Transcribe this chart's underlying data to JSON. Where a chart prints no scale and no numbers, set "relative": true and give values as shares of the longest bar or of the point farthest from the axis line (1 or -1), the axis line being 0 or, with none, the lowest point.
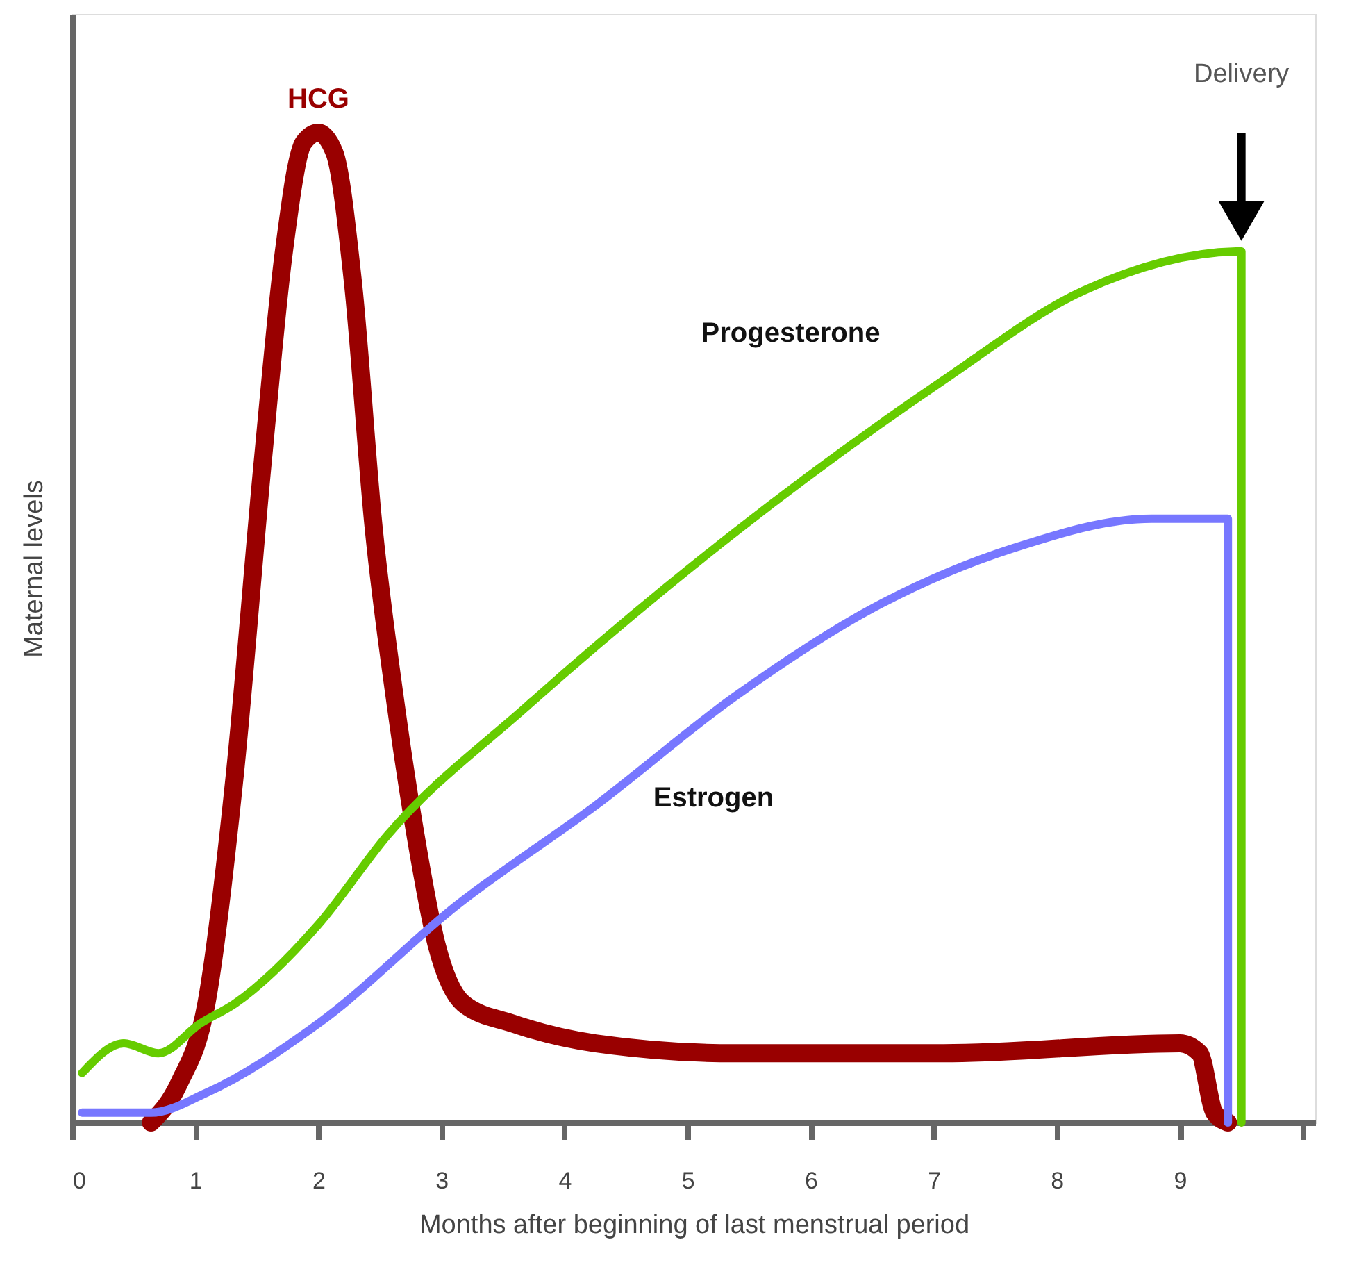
{
  "chart_data": {
    "type": "line",
    "relative": true,
    "xlabel": "Months after beginning of last menstrual period",
    "ylabel": "Maternal levels",
    "xlim": [
      0,
      10.1
    ],
    "xticks": [
      0,
      1,
      2,
      3,
      4,
      5,
      6,
      7,
      8,
      9,
      {
        "value": 10,
        "label": null
      }
    ],
    "grid": false,
    "line_style": "solid",
    "series": [
      {
        "name": "HCG",
        "color": "#990000",
        "x": [
          0.64,
          0.87,
          1.09,
          1.32,
          1.55,
          1.72,
          1.88,
          2.0,
          2.13,
          2.28,
          2.45,
          2.62,
          2.79,
          2.96,
          3.18,
          3.58,
          4.25,
          5.38,
          7.08,
          9.0,
          9.16,
          9.28,
          9.39
        ],
        "values": [
          0,
          0.04,
          0.12,
          0.35,
          0.67,
          0.88,
          0.99,
          1,
          0.98,
          0.85,
          0.6,
          0.43,
          0.29,
          0.18,
          0.12,
          0.1,
          0.08,
          0.07,
          0.07,
          0.08,
          0.07,
          0.01,
          0
        ]
      },
      {
        "name": "Progesterone",
        "color": "#66cc00",
        "x": [
          0.08,
          0.42,
          0.7,
          1.04,
          1.32,
          2.0,
          2.56,
          3.69,
          4.82,
          5.95,
          7.08,
          8.21,
          9.5,
          9.5
        ],
        "values": [
          0.05,
          0.08,
          0.07,
          0.1,
          0.12,
          0.2,
          0.29,
          0.42,
          0.54,
          0.65,
          0.75,
          0.84,
          0.88,
          0
        ]
      },
      {
        "name": "Estrogen",
        "color": "#7777ff",
        "x": [
          0.08,
          0.64,
          1.09,
          2.0,
          3.13,
          4.25,
          5.38,
          6.51,
          7.64,
          8.77,
          9.39,
          9.39
        ],
        "values": [
          0.01,
          0.01,
          0.03,
          0.1,
          0.22,
          0.32,
          0.43,
          0.52,
          0.58,
          0.61,
          0.61,
          0
        ]
      }
    ],
    "annotations": [
      "Delivery"
    ]
  }
}
